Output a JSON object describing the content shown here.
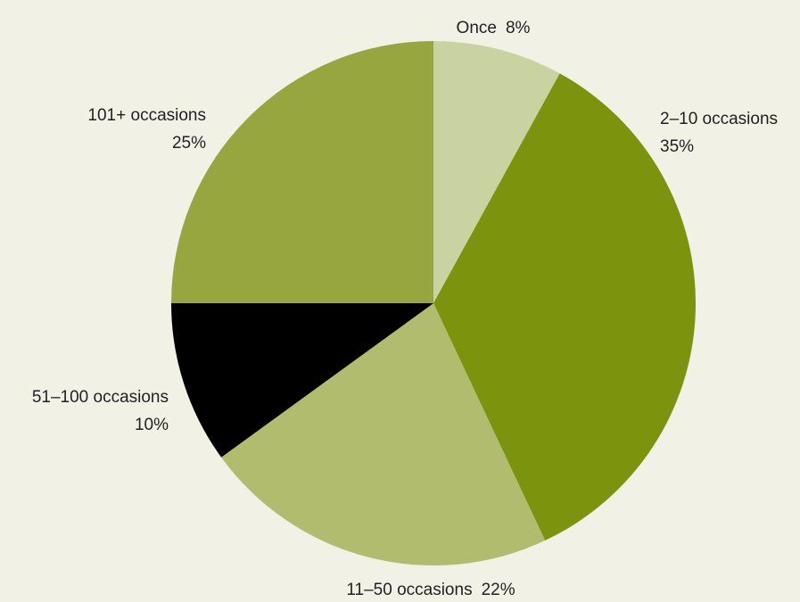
{
  "chart_data": {
    "type": "pie",
    "categories": [
      "Once",
      "2–10 occasions",
      "11–50 occasions",
      "51–100 occasions",
      "101+ occasions"
    ],
    "values": [
      8,
      35,
      22,
      10,
      25
    ],
    "value_labels": [
      "8%",
      "35%",
      "22%",
      "10%",
      "25%"
    ],
    "colors": [
      "#c9d2a1",
      "#7b930d",
      "#b1bc6f",
      "#000000",
      "#97a63f"
    ]
  }
}
